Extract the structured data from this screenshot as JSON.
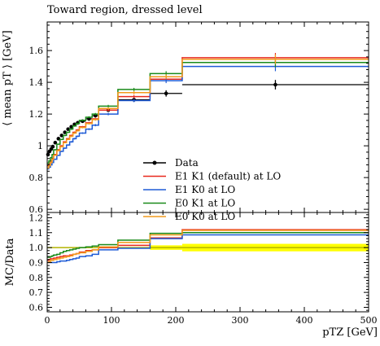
{
  "figure_title": "Toward region, dressed level",
  "chart_data": [
    {
      "type": "line",
      "panel": "main",
      "title": "Toward region, dressed level",
      "ylabel": "⟨ mean pT ⟩ [GeV]",
      "xlabel": "",
      "xlim": [
        0,
        500
      ],
      "ylim": [
        0.58,
        1.78
      ],
      "x_ticks": [
        0,
        100,
        200,
        300,
        400,
        500
      ],
      "y_ticks": [
        0.6,
        0.8,
        1.0,
        1.2,
        1.4,
        1.6
      ],
      "y_tick_labels": [
        "0.6",
        "0.8",
        "1",
        "1.2",
        "1.4",
        "1.6"
      ],
      "grid": false,
      "legend_position": "lower-right",
      "bin_edges": [
        0,
        2.5,
        5,
        7.5,
        10,
        15,
        20,
        25,
        30,
        35,
        40,
        45,
        50,
        60,
        70,
        80,
        110,
        160,
        210,
        500
      ],
      "series": [
        {
          "name": "Data",
          "style": "points",
          "color": "#000000",
          "x": [
            1.25,
            3.75,
            6.25,
            8.75,
            12.5,
            17.5,
            22.5,
            27.5,
            32.5,
            37.5,
            42.5,
            47.5,
            55,
            65,
            75,
            95,
            135,
            185,
            355
          ],
          "values": [
            0.945,
            0.965,
            0.98,
            0.995,
            1.02,
            1.045,
            1.065,
            1.085,
            1.105,
            1.12,
            1.135,
            1.145,
            1.155,
            1.17,
            1.19,
            1.225,
            1.29,
            1.33,
            1.385
          ],
          "errors": [
            0.005,
            0.005,
            0.005,
            0.005,
            0.005,
            0.005,
            0.005,
            0.005,
            0.006,
            0.006,
            0.006,
            0.007,
            0.007,
            0.008,
            0.008,
            0.01,
            0.012,
            0.02,
            0.03
          ]
        },
        {
          "name": "E1 K1 (default) at LO",
          "style": "step",
          "color": "#e8291d",
          "values": [
            0.875,
            0.89,
            0.905,
            0.92,
            0.945,
            0.975,
            1.0,
            1.025,
            1.045,
            1.065,
            1.085,
            1.1,
            1.12,
            1.145,
            1.17,
            1.225,
            1.31,
            1.42,
            1.555
          ],
          "errors": [
            0.004,
            0.004,
            0.004,
            0.004,
            0.004,
            0.004,
            0.004,
            0.004,
            0.004,
            0.005,
            0.005,
            0.005,
            0.005,
            0.006,
            0.007,
            0.008,
            0.01,
            0.015,
            0.03
          ]
        },
        {
          "name": "E1 K0 at LO",
          "style": "step",
          "color": "#1e5bd6",
          "values": [
            0.855,
            0.865,
            0.88,
            0.895,
            0.915,
            0.94,
            0.965,
            0.985,
            1.005,
            1.025,
            1.045,
            1.06,
            1.08,
            1.105,
            1.13,
            1.2,
            1.285,
            1.41,
            1.5
          ],
          "errors": [
            0.004,
            0.004,
            0.004,
            0.004,
            0.004,
            0.004,
            0.004,
            0.004,
            0.004,
            0.005,
            0.005,
            0.005,
            0.005,
            0.006,
            0.007,
            0.008,
            0.01,
            0.015,
            0.03
          ]
        },
        {
          "name": "E0 K1 at LO",
          "style": "step",
          "color": "#1a8a1a",
          "values": [
            0.89,
            0.905,
            0.925,
            0.945,
            0.975,
            1.01,
            1.04,
            1.065,
            1.085,
            1.105,
            1.125,
            1.14,
            1.16,
            1.18,
            1.2,
            1.25,
            1.355,
            1.455,
            1.525
          ],
          "errors": [
            0.004,
            0.004,
            0.004,
            0.004,
            0.004,
            0.004,
            0.004,
            0.004,
            0.004,
            0.005,
            0.005,
            0.005,
            0.005,
            0.006,
            0.007,
            0.008,
            0.01,
            0.015,
            0.03
          ]
        },
        {
          "name": "E0 K0 at LO",
          "style": "step",
          "color": "#f29a1c",
          "values": [
            0.86,
            0.875,
            0.895,
            0.915,
            0.94,
            0.97,
            0.995,
            1.02,
            1.04,
            1.06,
            1.08,
            1.095,
            1.115,
            1.14,
            1.165,
            1.235,
            1.335,
            1.435,
            1.545
          ],
          "errors": [
            0.004,
            0.004,
            0.004,
            0.004,
            0.004,
            0.004,
            0.004,
            0.004,
            0.004,
            0.005,
            0.005,
            0.005,
            0.005,
            0.006,
            0.007,
            0.008,
            0.01,
            0.015,
            0.03
          ]
        }
      ]
    },
    {
      "type": "line",
      "panel": "ratio",
      "title": "",
      "ylabel": "MC/Data",
      "xlabel": "pTZ [GeV]",
      "xlim": [
        0,
        500
      ],
      "ylim": [
        0.57,
        1.235
      ],
      "x_ticks": [
        0,
        100,
        200,
        300,
        400,
        500
      ],
      "x_tick_labels": [
        "0",
        "100",
        "200",
        "300",
        "400",
        "500"
      ],
      "y_ticks": [
        0.6,
        0.7,
        0.8,
        0.9,
        1.0,
        1.1,
        1.2
      ],
      "y_tick_labels": [
        "0.6",
        "0.7",
        "0.8",
        "0.9",
        "1.0",
        "1.1",
        "1.2"
      ],
      "grid": false,
      "reference_line": 1.0,
      "reference_line_color": "#b3b300",
      "data_uncertainty_band": {
        "color": "#ffff00",
        "x_ranges": [
          [
            160,
            210
          ],
          [
            210,
            500
          ]
        ],
        "lower": [
          0.985,
          0.975
        ],
        "upper": [
          1.015,
          1.025
        ]
      },
      "bin_edges": [
        0,
        2.5,
        5,
        7.5,
        10,
        15,
        20,
        25,
        30,
        35,
        40,
        45,
        50,
        60,
        70,
        80,
        110,
        160,
        210,
        500
      ],
      "series": [
        {
          "name": "E1 K1 (default) at LO",
          "style": "step",
          "color": "#e8291d",
          "values": [
            0.915,
            0.92,
            0.925,
            0.925,
            0.93,
            0.935,
            0.94,
            0.945,
            0.945,
            0.95,
            0.955,
            0.96,
            0.97,
            0.98,
            0.985,
            1.0,
            1.015,
            1.065,
            1.12
          ]
        },
        {
          "name": "E1 K0 at LO",
          "style": "step",
          "color": "#1e5bd6",
          "values": [
            0.9,
            0.9,
            0.9,
            0.9,
            0.9,
            0.905,
            0.91,
            0.91,
            0.915,
            0.92,
            0.925,
            0.93,
            0.94,
            0.945,
            0.955,
            0.985,
            0.995,
            1.06,
            1.085
          ]
        },
        {
          "name": "E0 K1 at LO",
          "style": "step",
          "color": "#1a8a1a",
          "values": [
            0.935,
            0.935,
            0.94,
            0.945,
            0.95,
            0.955,
            0.965,
            0.975,
            0.98,
            0.985,
            0.99,
            0.995,
            1.0,
            1.005,
            1.01,
            1.02,
            1.05,
            1.095,
            1.1
          ]
        },
        {
          "name": "E0 K0 at LO",
          "style": "step",
          "color": "#f29a1c",
          "values": [
            0.9,
            0.905,
            0.915,
            0.915,
            0.92,
            0.925,
            0.93,
            0.935,
            0.94,
            0.945,
            0.955,
            0.96,
            0.965,
            0.975,
            0.985,
            1.005,
            1.035,
            1.085,
            1.115
          ]
        }
      ]
    }
  ]
}
